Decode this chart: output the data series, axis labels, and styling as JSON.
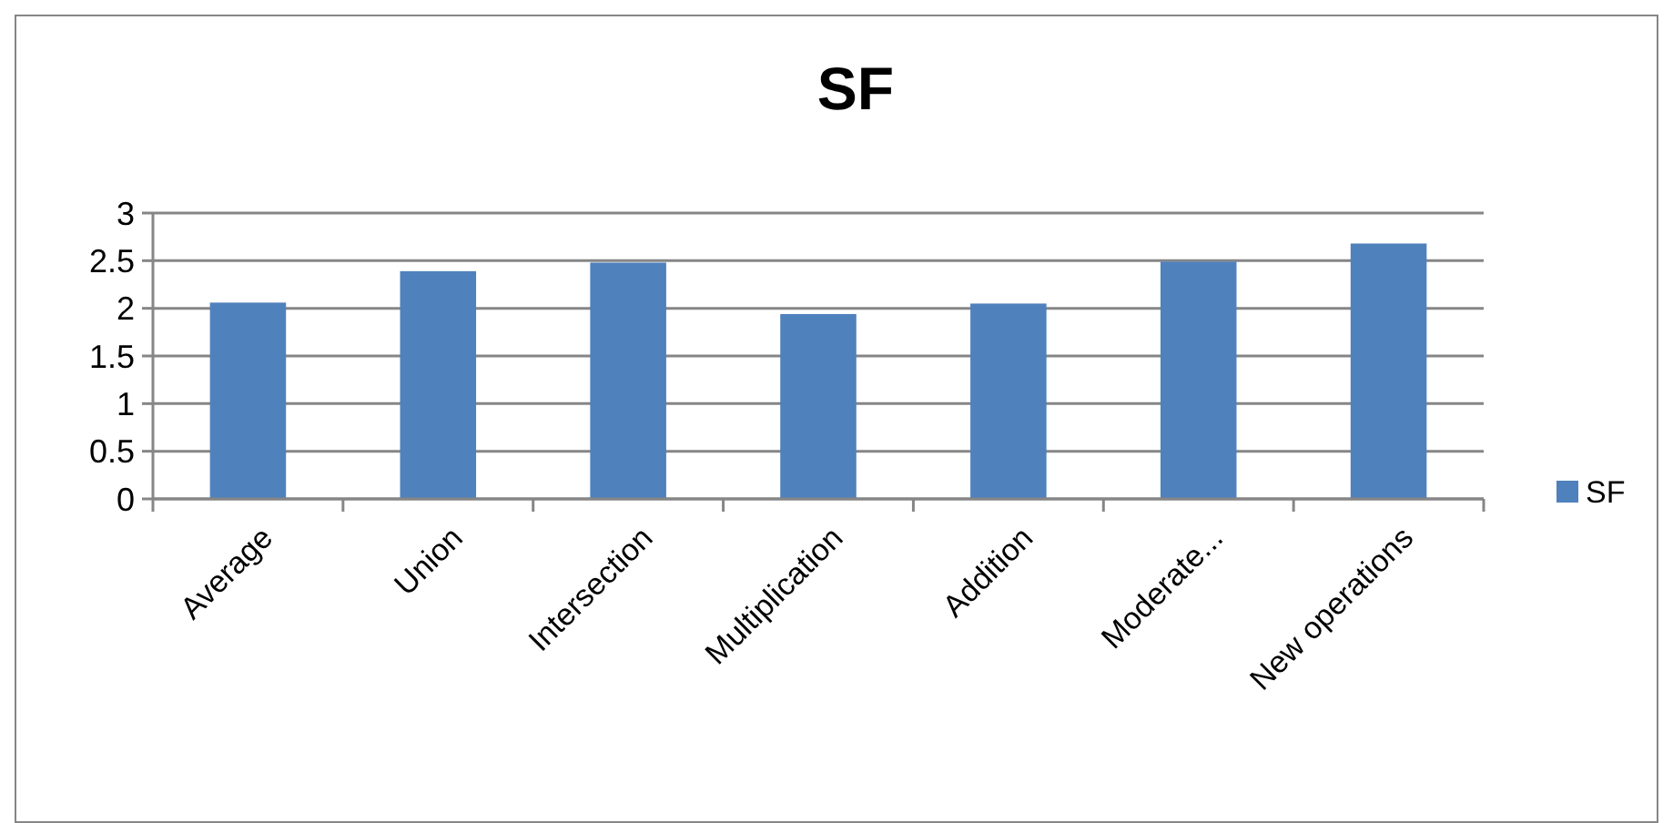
{
  "chart_data": {
    "type": "bar",
    "title": "SF",
    "categories": [
      "Average",
      "Union",
      "Intersection",
      "Multiplication",
      "Addition",
      "Moderate...",
      "New operations"
    ],
    "series": [
      {
        "name": "SF",
        "color": "#4f81bd",
        "values": [
          2.06,
          2.39,
          2.48,
          1.94,
          2.05,
          2.49,
          2.68
        ]
      }
    ],
    "ylim": [
      0,
      3
    ],
    "yticks": [
      0,
      0.5,
      1,
      1.5,
      2,
      2.5,
      3
    ],
    "grid": "y",
    "legend": "right"
  }
}
